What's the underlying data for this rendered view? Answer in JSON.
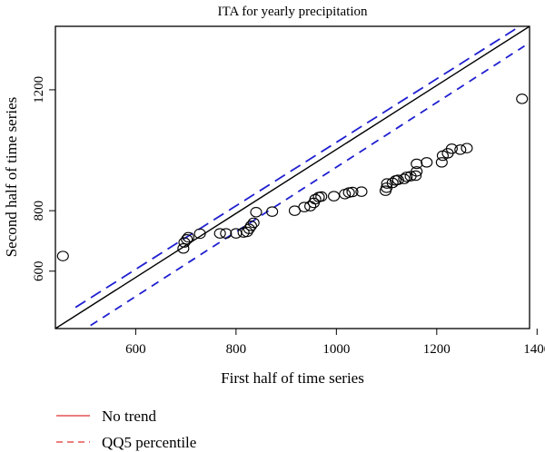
{
  "chart_data": {
    "type": "scatter",
    "title": "ITA for yearly precipitation",
    "xlabel": "First half of time series",
    "ylabel": "Second half of time series",
    "xlim": [
      440,
      1385
    ],
    "ylim": [
      410,
      1410
    ],
    "xticks": [
      600,
      800,
      1000,
      1200,
      1400
    ],
    "yticks": [
      600,
      800,
      1200
    ],
    "grid": false,
    "point_color": "#000000",
    "points": [
      {
        "x": 455,
        "y": 650
      },
      {
        "x": 695,
        "y": 675
      },
      {
        "x": 697,
        "y": 695
      },
      {
        "x": 702,
        "y": 705
      },
      {
        "x": 705,
        "y": 712
      },
      {
        "x": 728,
        "y": 724
      },
      {
        "x": 768,
        "y": 725
      },
      {
        "x": 780,
        "y": 725
      },
      {
        "x": 800,
        "y": 725
      },
      {
        "x": 815,
        "y": 728
      },
      {
        "x": 822,
        "y": 730
      },
      {
        "x": 826,
        "y": 740
      },
      {
        "x": 830,
        "y": 750
      },
      {
        "x": 835,
        "y": 760
      },
      {
        "x": 840,
        "y": 795
      },
      {
        "x": 872,
        "y": 797
      },
      {
        "x": 917,
        "y": 800
      },
      {
        "x": 936,
        "y": 812
      },
      {
        "x": 948,
        "y": 815
      },
      {
        "x": 955,
        "y": 826
      },
      {
        "x": 958,
        "y": 838
      },
      {
        "x": 965,
        "y": 845
      },
      {
        "x": 970,
        "y": 847
      },
      {
        "x": 995,
        "y": 848
      },
      {
        "x": 1017,
        "y": 855
      },
      {
        "x": 1025,
        "y": 860
      },
      {
        "x": 1032,
        "y": 862
      },
      {
        "x": 1050,
        "y": 863
      },
      {
        "x": 1098,
        "y": 866
      },
      {
        "x": 1100,
        "y": 876
      },
      {
        "x": 1101,
        "y": 890
      },
      {
        "x": 1112,
        "y": 892
      },
      {
        "x": 1118,
        "y": 900
      },
      {
        "x": 1123,
        "y": 902
      },
      {
        "x": 1135,
        "y": 905
      },
      {
        "x": 1140,
        "y": 912
      },
      {
        "x": 1148,
        "y": 914
      },
      {
        "x": 1158,
        "y": 916
      },
      {
        "x": 1160,
        "y": 930
      },
      {
        "x": 1160,
        "y": 955
      },
      {
        "x": 1180,
        "y": 960
      },
      {
        "x": 1210,
        "y": 960
      },
      {
        "x": 1212,
        "y": 982
      },
      {
        "x": 1222,
        "y": 990
      },
      {
        "x": 1230,
        "y": 1005
      },
      {
        "x": 1247,
        "y": 1002
      },
      {
        "x": 1260,
        "y": 1007
      },
      {
        "x": 1370,
        "y": 1170
      }
    ],
    "lines": [
      {
        "role": "no_trend",
        "x": [
          440,
          1385
        ],
        "y": [
          410,
          1410
        ],
        "color": "#000000",
        "dash": "solid"
      },
      {
        "role": "upper_percentile",
        "x": [
          480,
          1375
        ],
        "y": [
          480,
          1420
        ],
        "color": "#1f1fd1",
        "dash": "long"
      },
      {
        "role": "lower_percentile",
        "x": [
          510,
          1375
        ],
        "y": [
          420,
          1345
        ],
        "color": "#1f1fd1",
        "dash": "short"
      }
    ],
    "legend": {
      "placement": "bottom-left",
      "entries": [
        {
          "label": "No trend",
          "color": "#e03030",
          "dash": "solid"
        },
        {
          "label": "QQ5 percentile",
          "color": "#e03030",
          "dash": "dashed"
        }
      ]
    }
  }
}
